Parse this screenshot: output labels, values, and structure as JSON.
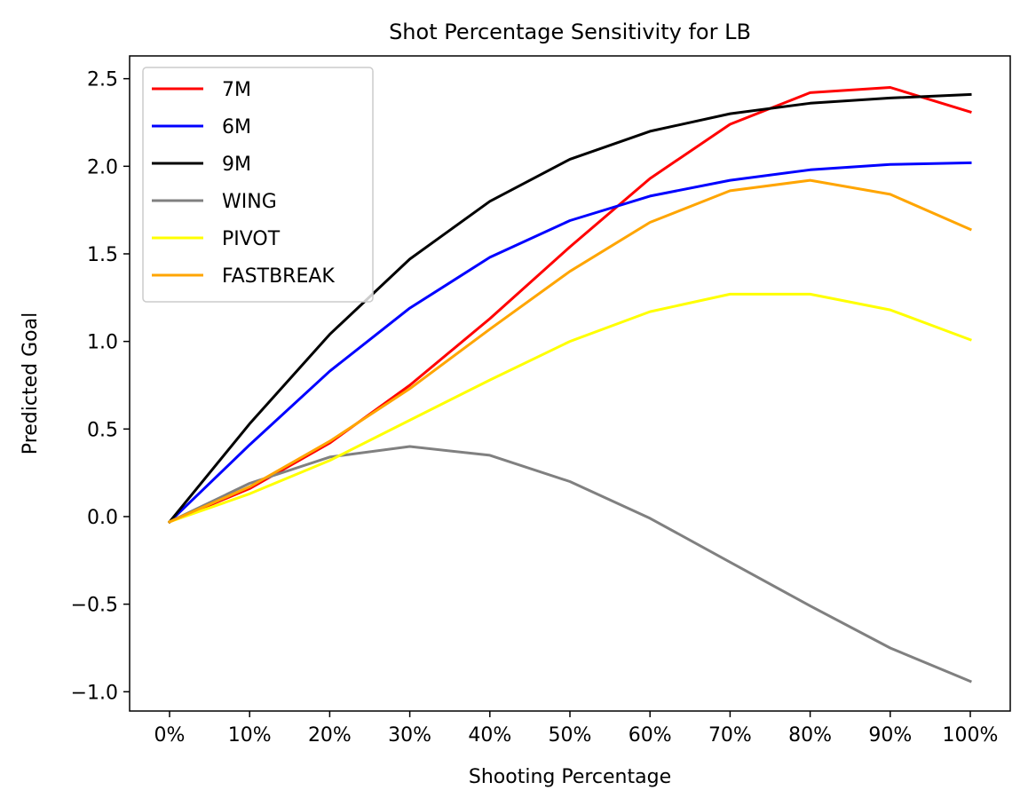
{
  "chart_data": {
    "type": "line",
    "title": "Shot Percentage Sensitivity for LB",
    "xlabel": "Shooting Percentage",
    "ylabel": "Predicted Goal",
    "categories": [
      "0%",
      "10%",
      "20%",
      "30%",
      "40%",
      "50%",
      "60%",
      "70%",
      "80%",
      "90%",
      "100%"
    ],
    "yticks": [
      "−1.0",
      "−0.5",
      "0.0",
      "0.5",
      "1.0",
      "1.5",
      "2.0",
      "2.5"
    ],
    "ytick_values": [
      -1.0,
      -0.5,
      0.0,
      0.5,
      1.0,
      1.5,
      2.0,
      2.5
    ],
    "ylim": [
      -1.11,
      2.63
    ],
    "grid": false,
    "legend_position": "top-left",
    "series": [
      {
        "name": "7M",
        "color": "#ff0000",
        "values": [
          -0.03,
          0.16,
          0.42,
          0.75,
          1.13,
          1.54,
          1.93,
          2.24,
          2.42,
          2.45,
          2.31
        ]
      },
      {
        "name": "6M",
        "color": "#0000ff",
        "values": [
          -0.03,
          0.41,
          0.83,
          1.19,
          1.48,
          1.69,
          1.83,
          1.92,
          1.98,
          2.01,
          2.02
        ]
      },
      {
        "name": "9M",
        "color": "#000000",
        "values": [
          -0.03,
          0.53,
          1.04,
          1.47,
          1.8,
          2.04,
          2.2,
          2.3,
          2.36,
          2.39,
          2.41
        ]
      },
      {
        "name": "WING",
        "color": "#808080",
        "values": [
          -0.03,
          0.19,
          0.34,
          0.4,
          0.35,
          0.2,
          -0.01,
          -0.26,
          -0.51,
          -0.75,
          -0.94
        ]
      },
      {
        "name": "PIVOT",
        "color": "#ffff00",
        "values": [
          -0.03,
          0.13,
          0.32,
          0.55,
          0.78,
          1.0,
          1.17,
          1.27,
          1.27,
          1.18,
          1.01
        ]
      },
      {
        "name": "FASTBREAK",
        "color": "#ffa500",
        "values": [
          -0.03,
          0.17,
          0.43,
          0.73,
          1.07,
          1.4,
          1.68,
          1.86,
          1.92,
          1.84,
          1.64
        ]
      }
    ]
  }
}
